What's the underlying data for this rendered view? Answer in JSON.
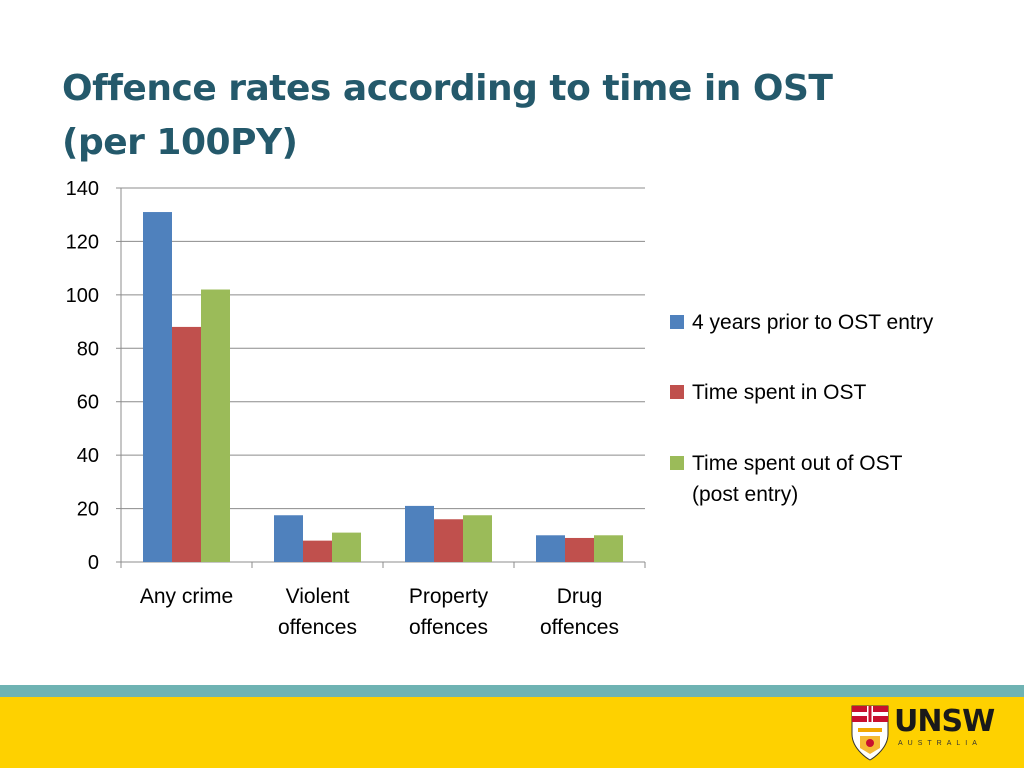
{
  "slide": {
    "title": "Offence rates according to time in OST (per 100PY)"
  },
  "chart_data": {
    "type": "bar",
    "title": "",
    "xlabel": "",
    "ylabel": "",
    "ylim": [
      0,
      140
    ],
    "yticks": [
      0,
      20,
      40,
      60,
      80,
      100,
      120,
      140
    ],
    "grid": true,
    "legend": "right",
    "categories": [
      [
        "Any crime"
      ],
      [
        "Violent",
        "offences"
      ],
      [
        "Property",
        "offences"
      ],
      [
        "Drug",
        "offences"
      ]
    ],
    "series": [
      {
        "name": "4 years prior to OST entry",
        "color": "#4f81bd",
        "values": [
          131,
          17.5,
          21,
          10
        ]
      },
      {
        "name": "Time spent in OST",
        "color": "#c0504d",
        "values": [
          88,
          8,
          16,
          9
        ]
      },
      {
        "name": "Time spent out of OST (post entry)",
        "color": "#9bbb59",
        "values": [
          102,
          11,
          17.5,
          10
        ]
      }
    ]
  },
  "footer": {
    "logo_name": "UNSW",
    "logo_subtitle": "AUSTRALIA",
    "colors": {
      "band": "#6fb3b3",
      "background": "#fed100"
    },
    "icon": "unsw-crest-icon"
  }
}
